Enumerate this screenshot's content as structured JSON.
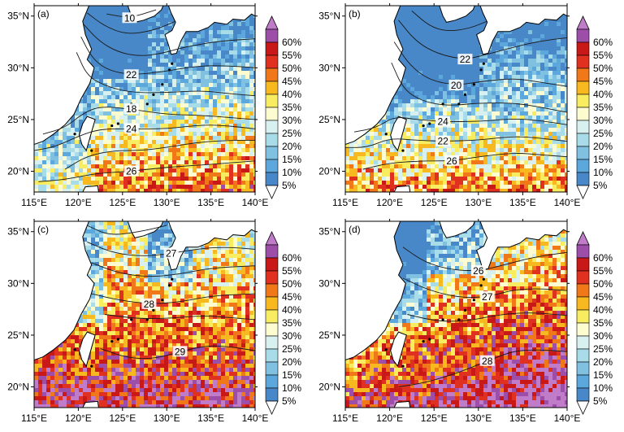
{
  "figure": {
    "panels": [
      {
        "label": "(a)",
        "contours": [
          {
            "value": "10",
            "path": [
              [
                123.2,
                35.2
              ],
              [
                125.8,
                34.8
              ],
              [
                128.8,
                35.6
              ]
            ]
          },
          {
            "value": "",
            "path": [
              [
                121.0,
                35.3
              ],
              [
                123.0,
                34.0
              ],
              [
                125.5,
                33.2
              ],
              [
                128.5,
                33.6
              ],
              [
                131.0,
                34.5
              ]
            ]
          },
          {
            "value": "",
            "path": [
              [
                120.6,
                34.2
              ],
              [
                122.3,
                32.6
              ],
              [
                124.5,
                31.5
              ],
              [
                127.0,
                31.1
              ],
              [
                129.5,
                31.4
              ],
              [
                132.0,
                32.0
              ],
              [
                136.0,
                32.6
              ],
              [
                140.0,
                32.8
              ]
            ]
          },
          {
            "value": "22",
            "path": [
              [
                120.3,
                33.0
              ],
              [
                121.5,
                31.0
              ],
              [
                123.2,
                29.8
              ],
              [
                126.0,
                29.3
              ],
              [
                129.5,
                29.6
              ],
              [
                133.5,
                30.2
              ],
              [
                137.0,
                30.2
              ],
              [
                140.0,
                30.0
              ]
            ]
          },
          {
            "value": "",
            "path": [
              [
                119.8,
                31.5
              ],
              [
                121.0,
                29.2
              ],
              [
                123.2,
                28.2
              ],
              [
                126.0,
                27.6
              ],
              [
                130.0,
                27.6
              ],
              [
                134.0,
                27.8
              ],
              [
                137.0,
                27.5
              ],
              [
                140.0,
                27.3
              ]
            ]
          },
          {
            "value": "18",
            "path": [
              [
                116.0,
                23.6
              ],
              [
                118.5,
                24.2
              ],
              [
                120.5,
                25.6
              ],
              [
                122.5,
                26.3
              ],
              [
                126.0,
                26.0
              ],
              [
                130.0,
                25.5
              ],
              [
                134.0,
                25.4
              ],
              [
                137.0,
                25.2
              ],
              [
                140.0,
                25.0
              ]
            ]
          },
          {
            "value": "24",
            "path": [
              [
                115.0,
                22.0
              ],
              [
                117.5,
                22.4
              ],
              [
                120.0,
                23.4
              ],
              [
                122.5,
                24.1
              ],
              [
                126.0,
                24.1
              ],
              [
                130.0,
                24.1
              ],
              [
                134.0,
                24.5
              ],
              [
                137.0,
                24.4
              ],
              [
                140.0,
                24.1
              ]
            ]
          },
          {
            "value": "",
            "path": [
              [
                118.5,
                20.2
              ],
              [
                121.0,
                21.5
              ],
              [
                124.0,
                22.0
              ],
              [
                127.0,
                22.0
              ],
              [
                130.0,
                22.3
              ],
              [
                133.5,
                22.8
              ],
              [
                137.0,
                23.0
              ],
              [
                140.0,
                23.0
              ]
            ]
          },
          {
            "value": "26",
            "path": [
              [
                115.5,
                19.0
              ],
              [
                118.5,
                19.2
              ],
              [
                122.0,
                19.8
              ],
              [
                126.0,
                20.0
              ],
              [
                130.0,
                20.4
              ],
              [
                134.0,
                20.6
              ],
              [
                137.0,
                20.8
              ],
              [
                140.0,
                21.0
              ]
            ]
          }
        ]
      },
      {
        "label": "(b)",
        "contours": [
          {
            "value": "",
            "path": [
              [
                122.5,
                35.5
              ],
              [
                124.5,
                34.0
              ],
              [
                126.5,
                33.5
              ],
              [
                129.0,
                33.8
              ],
              [
                131.0,
                34.5
              ]
            ]
          },
          {
            "value": "22",
            "path": [
              [
                121.0,
                34.6
              ],
              [
                123.0,
                32.5
              ],
              [
                125.5,
                31.3
              ],
              [
                128.5,
                30.8
              ],
              [
                131.0,
                31.3
              ],
              [
                134.0,
                32.0
              ],
              [
                137.0,
                32.6
              ],
              [
                140.0,
                32.9
              ]
            ]
          },
          {
            "value": "20",
            "path": [
              [
                120.5,
                32.5
              ],
              [
                122.3,
                30.2
              ],
              [
                124.5,
                28.8
              ],
              [
                127.5,
                28.3
              ],
              [
                130.5,
                28.7
              ],
              [
                134.0,
                29.0
              ],
              [
                137.0,
                28.6
              ],
              [
                140.0,
                28.2
              ]
            ]
          },
          {
            "value": "",
            "path": [
              [
                120.2,
                30.5
              ],
              [
                121.5,
                28.0
              ],
              [
                123.5,
                26.8
              ],
              [
                126.5,
                26.3
              ],
              [
                130.0,
                26.6
              ],
              [
                134.0,
                26.6
              ],
              [
                137.0,
                26.2
              ],
              [
                140.0,
                25.7
              ]
            ]
          },
          {
            "value": "24",
            "path": [
              [
                116.0,
                23.8
              ],
              [
                118.5,
                24.2
              ],
              [
                120.5,
                25.3
              ],
              [
                123.0,
                25.0
              ],
              [
                126.0,
                24.8
              ],
              [
                130.0,
                24.8
              ],
              [
                134.0,
                25.1
              ],
              [
                137.0,
                24.9
              ],
              [
                140.0,
                24.5
              ]
            ]
          },
          {
            "value": "22",
            "path": [
              [
                115.0,
                22.3
              ],
              [
                117.5,
                22.3
              ],
              [
                120.0,
                23.2
              ],
              [
                123.0,
                23.0
              ],
              [
                126.0,
                22.9
              ],
              [
                130.0,
                23.0
              ],
              [
                134.0,
                23.4
              ],
              [
                137.0,
                23.2
              ],
              [
                140.0,
                22.9
              ]
            ]
          },
          {
            "value": "26",
            "path": [
              [
                117.0,
                20.2
              ],
              [
                120.0,
                20.8
              ],
              [
                123.5,
                21.0
              ],
              [
                127.0,
                21.0
              ],
              [
                130.0,
                21.4
              ],
              [
                134.0,
                21.8
              ],
              [
                137.0,
                21.6
              ],
              [
                140.0,
                21.4
              ]
            ]
          }
        ]
      },
      {
        "label": "(c)",
        "contours": [
          {
            "value": "",
            "path": [
              [
                121.0,
                35.6
              ],
              [
                123.5,
                34.6
              ],
              [
                127.0,
                35.0
              ],
              [
                130.0,
                35.6
              ]
            ]
          },
          {
            "value": "27",
            "path": [
              [
                121.0,
                34.0
              ],
              [
                124.0,
                32.9
              ],
              [
                127.5,
                32.6
              ],
              [
                130.5,
                32.9
              ],
              [
                134.0,
                33.4
              ],
              [
                137.0,
                33.5
              ],
              [
                140.0,
                33.3
              ]
            ]
          },
          {
            "value": "",
            "path": [
              [
                121.5,
                32.0
              ],
              [
                124.5,
                31.0
              ],
              [
                128.0,
                30.6
              ],
              [
                131.5,
                30.9
              ],
              [
                135.0,
                31.5
              ],
              [
                140.0,
                31.7
              ]
            ]
          },
          {
            "value": "28",
            "path": [
              [
                121.5,
                29.0
              ],
              [
                124.5,
                28.4
              ],
              [
                128.0,
                28.0
              ],
              [
                131.5,
                28.2
              ],
              [
                135.0,
                28.8
              ],
              [
                140.0,
                29.0
              ]
            ]
          },
          {
            "value": "",
            "path": [
              [
                123.0,
                27.0
              ],
              [
                126.5,
                26.6
              ],
              [
                130.0,
                26.6
              ],
              [
                134.0,
                26.9
              ],
              [
                137.0,
                26.7
              ],
              [
                140.0,
                26.5
              ]
            ]
          },
          {
            "value": "29",
            "path": [
              [
                122.5,
                23.7
              ],
              [
                125.5,
                22.8
              ],
              [
                128.5,
                22.7
              ],
              [
                131.5,
                23.4
              ],
              [
                134.5,
                24.0
              ],
              [
                137.0,
                23.9
              ],
              [
                140.0,
                23.5
              ]
            ]
          }
        ]
      },
      {
        "label": "(d)",
        "contours": [
          {
            "value": "26",
            "path": [
              [
                121.5,
                33.5
              ],
              [
                124.0,
                32.0
              ],
              [
                127.0,
                31.3
              ],
              [
                130.0,
                31.2
              ],
              [
                133.0,
                31.8
              ],
              [
                136.0,
                32.5
              ],
              [
                140.0,
                33.0
              ]
            ]
          },
          {
            "value": "27",
            "path": [
              [
                121.5,
                30.5
              ],
              [
                124.5,
                29.3
              ],
              [
                128.0,
                28.6
              ],
              [
                131.0,
                28.7
              ],
              [
                134.0,
                29.4
              ],
              [
                137.0,
                29.5
              ],
              [
                140.0,
                29.3
              ]
            ]
          },
          {
            "value": "",
            "path": [
              [
                122.0,
                27.0
              ],
              [
                125.5,
                26.3
              ],
              [
                129.0,
                26.4
              ],
              [
                132.5,
                27.0
              ],
              [
                136.0,
                27.2
              ],
              [
                140.0,
                26.9
              ]
            ]
          },
          {
            "value": "28",
            "path": [
              [
                121.0,
                20.0
              ],
              [
                124.0,
                20.4
              ],
              [
                127.5,
                21.3
              ],
              [
                131.0,
                22.5
              ],
              [
                134.0,
                23.5
              ],
              [
                137.0,
                23.6
              ],
              [
                140.0,
                23.4
              ]
            ]
          }
        ]
      }
    ],
    "x_ticks": [
      "115°E",
      "120°E",
      "125°E",
      "130°E",
      "135°E",
      "140°E"
    ],
    "y_ticks": [
      "35°N",
      "30°N",
      "25°N",
      "20°N"
    ],
    "lon_range": [
      115,
      140
    ],
    "lat_range": [
      18,
      36
    ],
    "colorbar": {
      "labels": [
        "60%",
        "55%",
        "50%",
        "45%",
        "40%",
        "35%",
        "30%",
        "25%",
        "20%",
        "15%",
        "10%",
        "5%"
      ],
      "colors": [
        "#9c4ea8",
        "#c81818",
        "#e03020",
        "#f07818",
        "#f8b820",
        "#f8ec60",
        "#fcfcd0",
        "#d8f0f0",
        "#a8dce8",
        "#80c0e0",
        "#5ca8dc",
        "#4888c8"
      ],
      "over_color": "#c07cc8",
      "under_color": "#ffffff"
    },
    "colors": {
      "land": "#ffffff",
      "coast": "#000000",
      "contour": "#1a1a1a"
    }
  }
}
